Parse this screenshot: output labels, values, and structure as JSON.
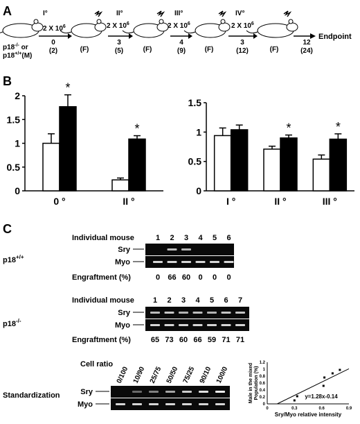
{
  "panel_a": {
    "letter": "A",
    "stages": [
      "I°",
      "II°",
      "III°",
      "IV°"
    ],
    "donor_label_line1": "p18",
    "donor_label_line1_sup": "-/-",
    "donor_label_line1_rest": " or",
    "donor_label_line2": "p18",
    "donor_label_line2_sup": "+/+",
    "donor_label_line2_rest": "(M)",
    "dose_label": "2 X 10",
    "dose_exp": "6",
    "recipient_label": "(F)",
    "timepoints": [
      {
        "top": "0",
        "bottom": "(2)"
      },
      {
        "top": "3",
        "bottom": "(5)"
      },
      {
        "top": "4",
        "bottom": "(9)"
      },
      {
        "top": "3",
        "bottom": "(12)"
      },
      {
        "top": "12",
        "bottom": "(24)"
      }
    ],
    "endpoint": "Endpoint"
  },
  "panel_b": {
    "letter": "B",
    "colors": {
      "open": "#ffffff",
      "filled": "#000000"
    },
    "chart_data": [
      {
        "type": "bar",
        "categories": [
          "0 °",
          "II °"
        ],
        "series": [
          {
            "values": [
              1.0,
              0.23
            ],
            "errors": [
              0.2,
              0.04
            ]
          },
          {
            "values": [
              1.77,
              1.09
            ],
            "errors": [
              0.25,
              0.07
            ]
          }
        ],
        "significance": [
          "*",
          "*"
        ],
        "ylim": [
          0,
          2
        ],
        "yticks": [
          "0",
          "0.5",
          "1",
          "1.5",
          "2"
        ]
      },
      {
        "type": "bar",
        "categories": [
          "I °",
          "II °",
          "III °"
        ],
        "series": [
          {
            "values": [
              0.94,
              0.71,
              0.54
            ],
            "errors": [
              0.13,
              0.05,
              0.07
            ]
          },
          {
            "values": [
              1.04,
              0.9,
              0.88
            ],
            "errors": [
              0.08,
              0.05,
              0.09
            ]
          }
        ],
        "significance": [
          "",
          "*",
          "*"
        ],
        "ylim": [
          0,
          1.5
        ],
        "yticks": [
          "0",
          "0.5",
          "1",
          "1.5"
        ]
      }
    ]
  },
  "panel_c": {
    "letter": "C",
    "wt": {
      "genotype": "p18",
      "genotype_sup": "+/+",
      "row_header": "Individual mouse",
      "ids": [
        "1",
        "2",
        "3",
        "4",
        "5",
        "6"
      ],
      "sry_label": "Sry",
      "myo_label": "Myo",
      "engraft_label": "Engraftment (%)",
      "engraftment": [
        "0",
        "66",
        "60",
        "0",
        "0",
        "0"
      ]
    },
    "ko": {
      "genotype": "p18",
      "genotype_sup": "-/-",
      "row_header": "Individual mouse",
      "ids": [
        "1",
        "2",
        "3",
        "4",
        "5",
        "6",
        "7"
      ],
      "sry_label": "Sry",
      "myo_label": "Myo",
      "engraft_label": "Engraftment (%)",
      "engraftment": [
        "65",
        "73",
        "60",
        "66",
        "59",
        "71",
        "71"
      ]
    },
    "standard": {
      "title": "Standardization",
      "ratio_header": "Cell ratio",
      "ratios": [
        "0/100",
        "10/90",
        "25/75",
        "50/50",
        "75/25",
        "90/10",
        "100/0"
      ],
      "sry_label": "Sry",
      "myo_label": "Myo"
    },
    "scatter": {
      "chart_data": {
        "type": "scatter",
        "x": [
          0.3,
          0.33,
          0.62,
          0.63,
          0.72,
          0.8
        ],
        "y": [
          0.1,
          0.22,
          0.52,
          0.76,
          0.88,
          0.98
        ],
        "xlim": [
          0,
          0.9
        ],
        "ylim": [
          0,
          1.2
        ],
        "xticks": [
          "0",
          "0.3",
          "0.6",
          "0.9"
        ],
        "yticks": [
          "0",
          "0.2",
          "0.4",
          "0.6",
          "0.8",
          "1",
          "1.2"
        ],
        "xlabel": "Sry/Myo relative intensity",
        "ylabel_line1": "Male in the mixed",
        "ylabel_line2": "Population (%)",
        "fit": {
          "slope": 1.28,
          "intercept": -0.14
        },
        "equation": "y=1.28x-0.14"
      }
    }
  }
}
